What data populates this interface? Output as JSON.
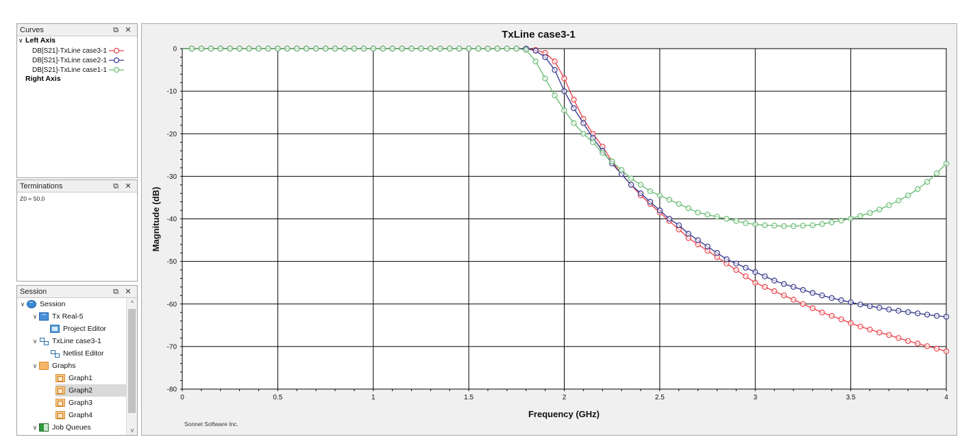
{
  "panels": {
    "curves": {
      "title": "Curves",
      "left_axis_label": "Left Axis",
      "right_axis_label": "Right Axis",
      "items": [
        {
          "label": "DB[S21]-TxLine case3-1",
          "color": "#e8474d"
        },
        {
          "label": "DB[S21]-TxLine case2-1",
          "color": "#3b3b8f"
        },
        {
          "label": "DB[S21]-TxLine case1-1",
          "color": "#6cbd76"
        }
      ]
    },
    "terminations": {
      "title": "Terminations",
      "text": "Z0 = 50.0"
    },
    "session": {
      "title": "Session",
      "tree": [
        {
          "label": "Session",
          "icon": "session-icon",
          "depth": 0,
          "expanded": true
        },
        {
          "label": "Tx Real-5",
          "icon": "project-icon",
          "depth": 1,
          "expanded": true
        },
        {
          "label": "Project Editor",
          "icon": "editor-icon",
          "depth": 2
        },
        {
          "label": "TxLine case3-1",
          "icon": "netlist-icon",
          "depth": 1,
          "expanded": true
        },
        {
          "label": "Netlist Editor",
          "icon": "netlist-icon",
          "depth": 2
        },
        {
          "label": "Graphs",
          "icon": "folder-icon",
          "depth": 1,
          "expanded": true
        },
        {
          "label": "Graph1",
          "icon": "graph-icon",
          "depth": 2
        },
        {
          "label": "Graph2",
          "icon": "graph-icon",
          "depth": 2,
          "selected": true
        },
        {
          "label": "Graph3",
          "icon": "graph-icon",
          "depth": 2
        },
        {
          "label": "Graph4",
          "icon": "graph-icon",
          "depth": 2
        },
        {
          "label": "Job Queues",
          "icon": "job-queue-icon",
          "depth": 1,
          "expanded": true
        }
      ]
    }
  },
  "graph": {
    "footer": "Sonnet Software Inc."
  },
  "chart_data": {
    "type": "line",
    "title": "TxLine case3-1",
    "xlabel": "Frequency (GHz)",
    "ylabel": "Magnitude (dB)",
    "xlim": [
      0,
      4
    ],
    "ylim": [
      -80,
      0
    ],
    "xticks": [
      0,
      0.5,
      1,
      1.5,
      2,
      2.5,
      3,
      3.5,
      4
    ],
    "xtick_labels": [
      "0",
      "0.5",
      "1",
      "1.5",
      "2",
      "2.5",
      "3",
      "3.5",
      "4"
    ],
    "yticks": [
      0,
      -10,
      -20,
      -30,
      -40,
      -50,
      -60,
      -70,
      -80
    ],
    "ytick_labels": [
      "0",
      "-10",
      "-20",
      "-30",
      "-40",
      "-50",
      "-60",
      "-70",
      "-80"
    ],
    "grid": true,
    "markers": "open-circle",
    "series": [
      {
        "name": "DB[S21]-TxLine case3-1",
        "color": "#e8474d",
        "x": [
          0.05,
          0.1,
          0.15,
          0.2,
          0.25,
          0.3,
          0.35,
          0.4,
          0.45,
          0.5,
          0.55,
          0.6,
          0.65,
          0.7,
          0.75,
          0.8,
          0.85,
          0.9,
          0.95,
          1.0,
          1.05,
          1.1,
          1.15,
          1.2,
          1.25,
          1.3,
          1.35,
          1.4,
          1.45,
          1.5,
          1.55,
          1.6,
          1.65,
          1.7,
          1.75,
          1.8,
          1.85,
          1.9,
          1.95,
          2.0,
          2.05,
          2.1,
          2.15,
          2.2,
          2.25,
          2.3,
          2.35,
          2.4,
          2.45,
          2.5,
          2.55,
          2.6,
          2.65,
          2.7,
          2.75,
          2.8,
          2.85,
          2.9,
          2.95,
          3.0,
          3.05,
          3.1,
          3.15,
          3.2,
          3.25,
          3.3,
          3.35,
          3.4,
          3.45,
          3.5,
          3.55,
          3.6,
          3.65,
          3.7,
          3.75,
          3.8,
          3.85,
          3.9,
          3.95,
          4.0
        ],
        "y": [
          0,
          0,
          0,
          0,
          0,
          0,
          0,
          0,
          0,
          0,
          0,
          0,
          0,
          0,
          0,
          0,
          0,
          0,
          0,
          0,
          0,
          0,
          0,
          0,
          0,
          0,
          0,
          0,
          0,
          0,
          0,
          0,
          0,
          0,
          0,
          0,
          -0.3,
          -1,
          -3,
          -7,
          -12,
          -16.5,
          -20,
          -23,
          -26.5,
          -29.5,
          -32,
          -34.5,
          -36.5,
          -38.5,
          -40.5,
          -42.5,
          -44.5,
          -46,
          -47.5,
          -49,
          -50.5,
          -52,
          -53.5,
          -55,
          -56,
          -57,
          -58,
          -59,
          -60,
          -61,
          -62,
          -62.8,
          -63.6,
          -64.5,
          -65.3,
          -66,
          -66.7,
          -67.3,
          -68,
          -68.7,
          -69.3,
          -69.9,
          -70.5,
          -71.1
        ]
      },
      {
        "name": "DB[S21]-TxLine case2-1",
        "color": "#3b3b8f",
        "x": [
          0.05,
          0.1,
          0.15,
          0.2,
          0.25,
          0.3,
          0.35,
          0.4,
          0.45,
          0.5,
          0.55,
          0.6,
          0.65,
          0.7,
          0.75,
          0.8,
          0.85,
          0.9,
          0.95,
          1.0,
          1.05,
          1.1,
          1.15,
          1.2,
          1.25,
          1.3,
          1.35,
          1.4,
          1.45,
          1.5,
          1.55,
          1.6,
          1.65,
          1.7,
          1.75,
          1.8,
          1.85,
          1.9,
          1.95,
          2.0,
          2.05,
          2.1,
          2.15,
          2.2,
          2.25,
          2.3,
          2.35,
          2.4,
          2.45,
          2.5,
          2.55,
          2.6,
          2.65,
          2.7,
          2.75,
          2.8,
          2.85,
          2.9,
          2.95,
          3.0,
          3.05,
          3.1,
          3.15,
          3.2,
          3.25,
          3.3,
          3.35,
          3.4,
          3.45,
          3.5,
          3.55,
          3.6,
          3.65,
          3.7,
          3.75,
          3.8,
          3.85,
          3.9,
          3.95,
          4.0
        ],
        "y": [
          0,
          0,
          0,
          0,
          0,
          0,
          0,
          0,
          0,
          0,
          0,
          0,
          0,
          0,
          0,
          0,
          0,
          0,
          0,
          0,
          0,
          0,
          0,
          0,
          0,
          0,
          0,
          0,
          0,
          0,
          0,
          0,
          0,
          0,
          0,
          0,
          -0.5,
          -2,
          -5,
          -10,
          -14,
          -17.5,
          -21,
          -24,
          -27,
          -29.5,
          -32,
          -34,
          -36,
          -38,
          -40,
          -41.5,
          -43.5,
          -45,
          -46.5,
          -48,
          -49.5,
          -50.5,
          -51.5,
          -52.5,
          -53.5,
          -54.5,
          -55.3,
          -56,
          -56.7,
          -57.4,
          -58,
          -58.6,
          -59.1,
          -59.6,
          -60.1,
          -60.5,
          -60.9,
          -61.3,
          -61.6,
          -61.9,
          -62.2,
          -62.5,
          -62.8,
          -63
        ]
      },
      {
        "name": "DB[S21]-TxLine case1-1",
        "color": "#6cbd76",
        "x": [
          0.05,
          0.1,
          0.15,
          0.2,
          0.25,
          0.3,
          0.35,
          0.4,
          0.45,
          0.5,
          0.55,
          0.6,
          0.65,
          0.7,
          0.75,
          0.8,
          0.85,
          0.9,
          0.95,
          1.0,
          1.05,
          1.1,
          1.15,
          1.2,
          1.25,
          1.3,
          1.35,
          1.4,
          1.45,
          1.5,
          1.55,
          1.6,
          1.65,
          1.7,
          1.75,
          1.8,
          1.85,
          1.9,
          1.95,
          2.0,
          2.05,
          2.1,
          2.15,
          2.2,
          2.25,
          2.3,
          2.35,
          2.4,
          2.45,
          2.5,
          2.55,
          2.6,
          2.65,
          2.7,
          2.75,
          2.8,
          2.85,
          2.9,
          2.95,
          3.0,
          3.05,
          3.1,
          3.15,
          3.2,
          3.25,
          3.3,
          3.35,
          3.4,
          3.45,
          3.5,
          3.55,
          3.6,
          3.65,
          3.7,
          3.75,
          3.8,
          3.85,
          3.9,
          3.95,
          4.0
        ],
        "y": [
          0,
          0,
          0,
          0,
          0,
          0,
          0,
          0,
          0,
          0,
          0,
          0,
          0,
          0,
          0,
          0,
          0,
          0,
          0,
          0,
          0,
          0,
          0,
          0,
          0,
          0,
          0,
          0,
          0,
          0,
          0,
          0,
          0,
          0,
          0,
          -0.3,
          -3,
          -7,
          -11,
          -14.5,
          -17.5,
          -20,
          -22,
          -24.5,
          -26.5,
          -28.5,
          -30.5,
          -32,
          -33.5,
          -34.5,
          -35.5,
          -36.5,
          -37.5,
          -38.5,
          -39,
          -39.5,
          -40,
          -40.5,
          -41,
          -41.3,
          -41.5,
          -41.6,
          -41.7,
          -41.7,
          -41.6,
          -41.5,
          -41.2,
          -40.8,
          -40.4,
          -39.9,
          -39.3,
          -38.6,
          -37.8,
          -36.8,
          -35.7,
          -34.5,
          -33,
          -31.3,
          -29.3,
          -27
        ]
      }
    ]
  }
}
